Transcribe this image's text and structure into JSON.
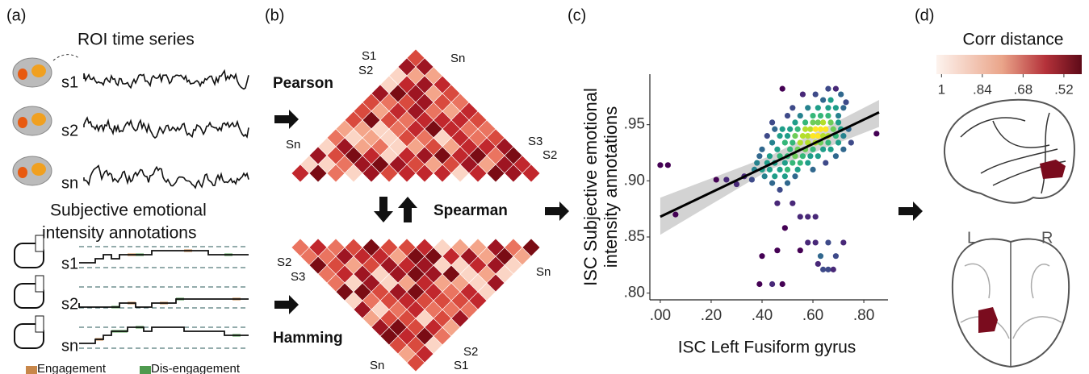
{
  "panels": {
    "a": {
      "label": "(a)",
      "roi_title": "ROI time series",
      "roi_subjects": [
        "s1",
        "s2",
        "sn"
      ],
      "annotation_title": [
        "Subjective emotional",
        "intensity annotations"
      ],
      "annotation_subjects": [
        "s1",
        "s2",
        "sn"
      ],
      "legend": [
        {
          "name": "Engagement",
          "color": "#c8874a"
        },
        {
          "name": "Dis-engagement",
          "color": "#4f9a4f"
        }
      ]
    },
    "b": {
      "label": "(b)",
      "methods": [
        "Pearson",
        "Spearman",
        "Hamming"
      ],
      "top_matrix_labels": [
        "S1",
        "S2",
        "Sn",
        "Sn",
        "S3",
        "S2"
      ],
      "bottom_matrix_labels": [
        "S2",
        "S3",
        "Sn",
        "Sn",
        "S2",
        "S1"
      ]
    },
    "d": {
      "label": "(d)",
      "colorbar_title": "Corr distance",
      "colorbar_ticks": [
        {
          "value": 1,
          "label": "1"
        },
        {
          "value": 0.84,
          "label": ".84"
        },
        {
          "value": 0.68,
          "label": ".68"
        },
        {
          "value": 0.52,
          "label": ".52"
        }
      ],
      "clim": [
        1.02,
        0.45
      ],
      "hemispheres": [
        "L",
        "R"
      ]
    }
  },
  "chart_data": {
    "type": "scatter",
    "panel_label": "(c)",
    "x_label": "ISC Left Fusiform gyrus",
    "y_label": [
      "ISC Subjective emotional",
      "intensity annotations"
    ],
    "xlim": [
      -0.041,
      0.895
    ],
    "ylim": [
      0.794,
      0.995
    ],
    "xticks": [
      {
        "value": 0,
        "label": ".00"
      },
      {
        "value": 0.2,
        "label": ".20"
      },
      {
        "value": 0.4,
        "label": ".40"
      },
      {
        "value": 0.6,
        "label": ".60"
      },
      {
        "value": 0.8,
        "label": ".80"
      }
    ],
    "yticks": [
      {
        "value": 0.8,
        "label": ".80"
      },
      {
        "value": 0.85,
        "label": ".85"
      },
      {
        "value": 0.9,
        "label": ".90"
      },
      {
        "value": 0.95,
        "label": ".95"
      }
    ],
    "x": [
      0.0,
      0.03,
      0.06,
      0.22,
      0.26,
      0.3,
      0.33,
      0.36,
      0.39,
      0.44,
      0.48,
      0.4,
      0.46,
      0.49,
      0.55,
      0.58,
      0.61,
      0.58,
      0.61,
      0.66,
      0.72,
      0.55,
      0.62,
      0.64,
      0.66,
      0.68,
      0.63,
      0.69,
      0.85,
      0.48,
      0.56,
      0.61,
      0.66,
      0.69,
      0.64,
      0.67,
      0.71,
      0.73,
      0.52,
      0.58,
      0.62,
      0.66,
      0.69,
      0.72,
      0.5,
      0.55,
      0.6,
      0.63,
      0.66,
      0.7,
      0.44,
      0.53,
      0.57,
      0.6,
      0.62,
      0.64,
      0.67,
      0.7,
      0.45,
      0.48,
      0.51,
      0.54,
      0.57,
      0.59,
      0.61,
      0.63,
      0.65,
      0.68,
      0.71,
      0.74,
      0.42,
      0.47,
      0.5,
      0.53,
      0.56,
      0.58,
      0.6,
      0.62,
      0.64,
      0.66,
      0.69,
      0.72,
      0.44,
      0.49,
      0.52,
      0.55,
      0.58,
      0.61,
      0.63,
      0.66,
      0.7,
      0.75,
      0.4,
      0.46,
      0.51,
      0.54,
      0.57,
      0.6,
      0.64,
      0.67,
      0.72,
      0.39,
      0.43,
      0.47,
      0.5,
      0.53,
      0.56,
      0.59,
      0.62,
      0.69,
      0.38,
      0.42,
      0.45,
      0.49,
      0.52,
      0.55,
      0.58,
      0.65,
      0.37,
      0.4,
      0.43,
      0.47,
      0.5,
      0.54,
      0.6,
      0.41,
      0.45,
      0.49,
      0.53,
      0.44,
      0.5,
      0.47,
      0.46,
      0.52
    ],
    "y": [
      0.914,
      0.914,
      0.87,
      0.901,
      0.901,
      0.897,
      0.904,
      0.901,
      0.808,
      0.808,
      0.808,
      0.833,
      0.838,
      0.858,
      0.868,
      0.868,
      0.868,
      0.845,
      0.845,
      0.845,
      0.845,
      0.838,
      0.826,
      0.821,
      0.821,
      0.821,
      0.833,
      0.833,
      0.942,
      0.982,
      0.977,
      0.977,
      0.982,
      0.982,
      0.972,
      0.972,
      0.977,
      0.97,
      0.965,
      0.965,
      0.965,
      0.965,
      0.965,
      0.965,
      0.958,
      0.958,
      0.958,
      0.958,
      0.958,
      0.958,
      0.952,
      0.952,
      0.952,
      0.952,
      0.952,
      0.952,
      0.952,
      0.952,
      0.946,
      0.946,
      0.946,
      0.946,
      0.946,
      0.946,
      0.946,
      0.946,
      0.946,
      0.946,
      0.946,
      0.946,
      0.94,
      0.94,
      0.94,
      0.94,
      0.94,
      0.94,
      0.94,
      0.94,
      0.94,
      0.94,
      0.94,
      0.94,
      0.934,
      0.934,
      0.934,
      0.934,
      0.934,
      0.934,
      0.934,
      0.934,
      0.934,
      0.934,
      0.928,
      0.928,
      0.928,
      0.928,
      0.928,
      0.928,
      0.928,
      0.928,
      0.928,
      0.922,
      0.922,
      0.922,
      0.922,
      0.922,
      0.922,
      0.922,
      0.922,
      0.922,
      0.916,
      0.916,
      0.916,
      0.916,
      0.916,
      0.916,
      0.916,
      0.916,
      0.91,
      0.91,
      0.91,
      0.91,
      0.91,
      0.91,
      0.91,
      0.904,
      0.904,
      0.904,
      0.904,
      0.898,
      0.898,
      0.892,
      0.88,
      0.88
    ],
    "trend": {
      "x": [
        0.0,
        0.86
      ],
      "y": [
        0.868,
        0.961
      ],
      "color": "#000000"
    },
    "ci": {
      "x": [
        0.0,
        0.43,
        0.86
      ],
      "lower": [
        0.852,
        0.91,
        0.948
      ],
      "upper": [
        0.885,
        0.922,
        0.972
      ],
      "color": "#c8c8c8"
    }
  }
}
